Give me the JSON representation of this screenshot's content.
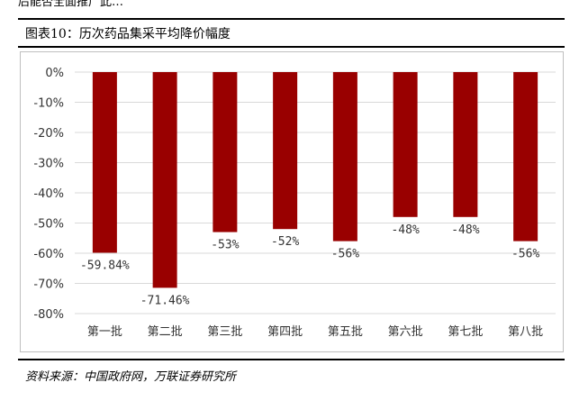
{
  "header_fragment": "后能否全面推广此…",
  "figure": {
    "caption": "图表10：历次药品集采平均降价幅度",
    "source": "资料来源：中国政府网，万联证券研究所"
  },
  "chart_data": {
    "type": "bar",
    "categories": [
      "第一批",
      "第二批",
      "第三批",
      "第四批",
      "第五批",
      "第六批",
      "第七批",
      "第八批"
    ],
    "values": [
      -59.84,
      -71.46,
      -53,
      -52,
      -56,
      -48,
      -48,
      -56
    ],
    "data_labels": [
      "-59.84%",
      "-71.46%",
      "-53%",
      "-52%",
      "-56%",
      "-48%",
      "-48%",
      "-56%"
    ],
    "y_ticks": [
      0,
      -10,
      -20,
      -30,
      -40,
      -50,
      -60,
      -70,
      -80
    ],
    "y_tick_labels": [
      "0%",
      "-10%",
      "-20%",
      "-30%",
      "-40%",
      "-50%",
      "-60%",
      "-70%",
      "-80%"
    ],
    "ylim": [
      -80,
      0
    ],
    "grid": true,
    "bar_color": "#990000",
    "title": "",
    "xlabel": "",
    "ylabel": ""
  }
}
